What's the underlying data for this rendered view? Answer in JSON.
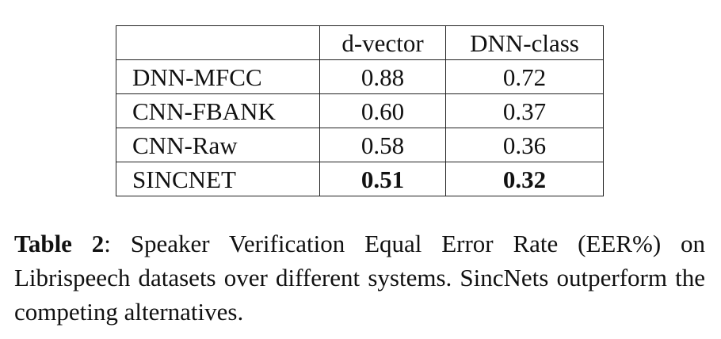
{
  "table": {
    "header": [
      "",
      "d-vector",
      "DNN-class"
    ],
    "rows": [
      {
        "label": "DNN-MFCC",
        "d_vector": "0.88",
        "dnn_class": "0.72",
        "bold": false
      },
      {
        "label": "CNN-FBANK",
        "d_vector": "0.60",
        "dnn_class": "0.37",
        "bold": false
      },
      {
        "label": "CNN-Raw",
        "d_vector": "0.58",
        "dnn_class": "0.36",
        "bold": false
      },
      {
        "label": "SINCNET",
        "d_vector": "0.51",
        "dnn_class": "0.32",
        "bold": true
      }
    ]
  },
  "caption": {
    "label": "Table 2",
    "separator": ":",
    "text": " Speaker Verification Equal Error Rate (EER%) on Librispeech datasets over different systems. SincNets outperform the competing alternatives."
  }
}
